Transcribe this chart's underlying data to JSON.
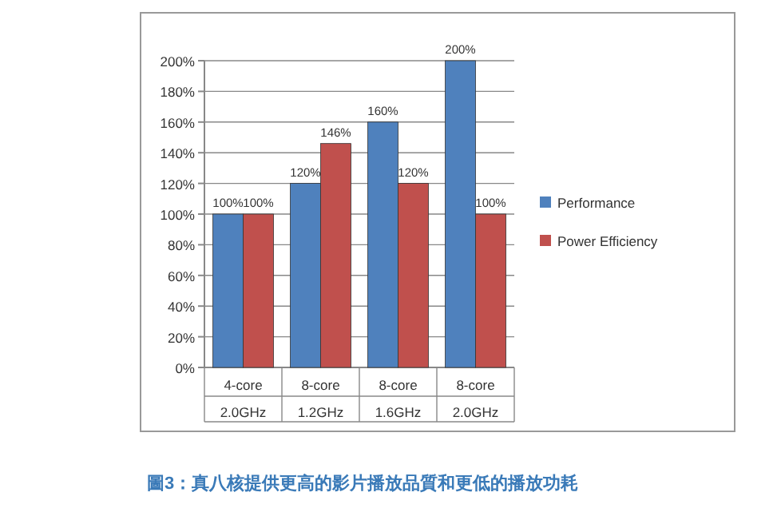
{
  "chart_data": {
    "type": "bar",
    "categories": [
      "4-core\n2.0GHz",
      "8-core\n1.2GHz",
      "8-core\n1.6GHz",
      "8-core\n2.0GHz"
    ],
    "series": [
      {
        "name": "Performance",
        "color": "#4f81bd",
        "values": [
          100,
          120,
          160,
          200
        ],
        "value_labels": [
          "100%",
          "120%",
          "160%",
          "200%"
        ]
      },
      {
        "name": "Power Efficiency",
        "color": "#c0504d",
        "values": [
          100,
          146,
          120,
          100
        ],
        "value_labels": [
          "100%",
          "146%",
          "120%",
          "100%"
        ]
      }
    ],
    "ylim": [
      0,
      200
    ],
    "yticks": [
      {
        "value": 0,
        "label": "0%"
      },
      {
        "value": 20,
        "label": "20%"
      },
      {
        "value": 40,
        "label": "40%"
      },
      {
        "value": 60,
        "label": "60%"
      },
      {
        "value": 80,
        "label": "80%"
      },
      {
        "value": 100,
        "label": "100%"
      },
      {
        "value": 120,
        "label": "120%"
      },
      {
        "value": 140,
        "label": "140%"
      },
      {
        "value": 160,
        "label": "160%"
      },
      {
        "value": 180,
        "label": "180%"
      },
      {
        "value": 200,
        "label": "200%"
      }
    ],
    "grid": "y",
    "legend": "right",
    "annotations": [
      "圖3：真八核提供更高的影片播放品質和更低的播放功耗"
    ]
  }
}
